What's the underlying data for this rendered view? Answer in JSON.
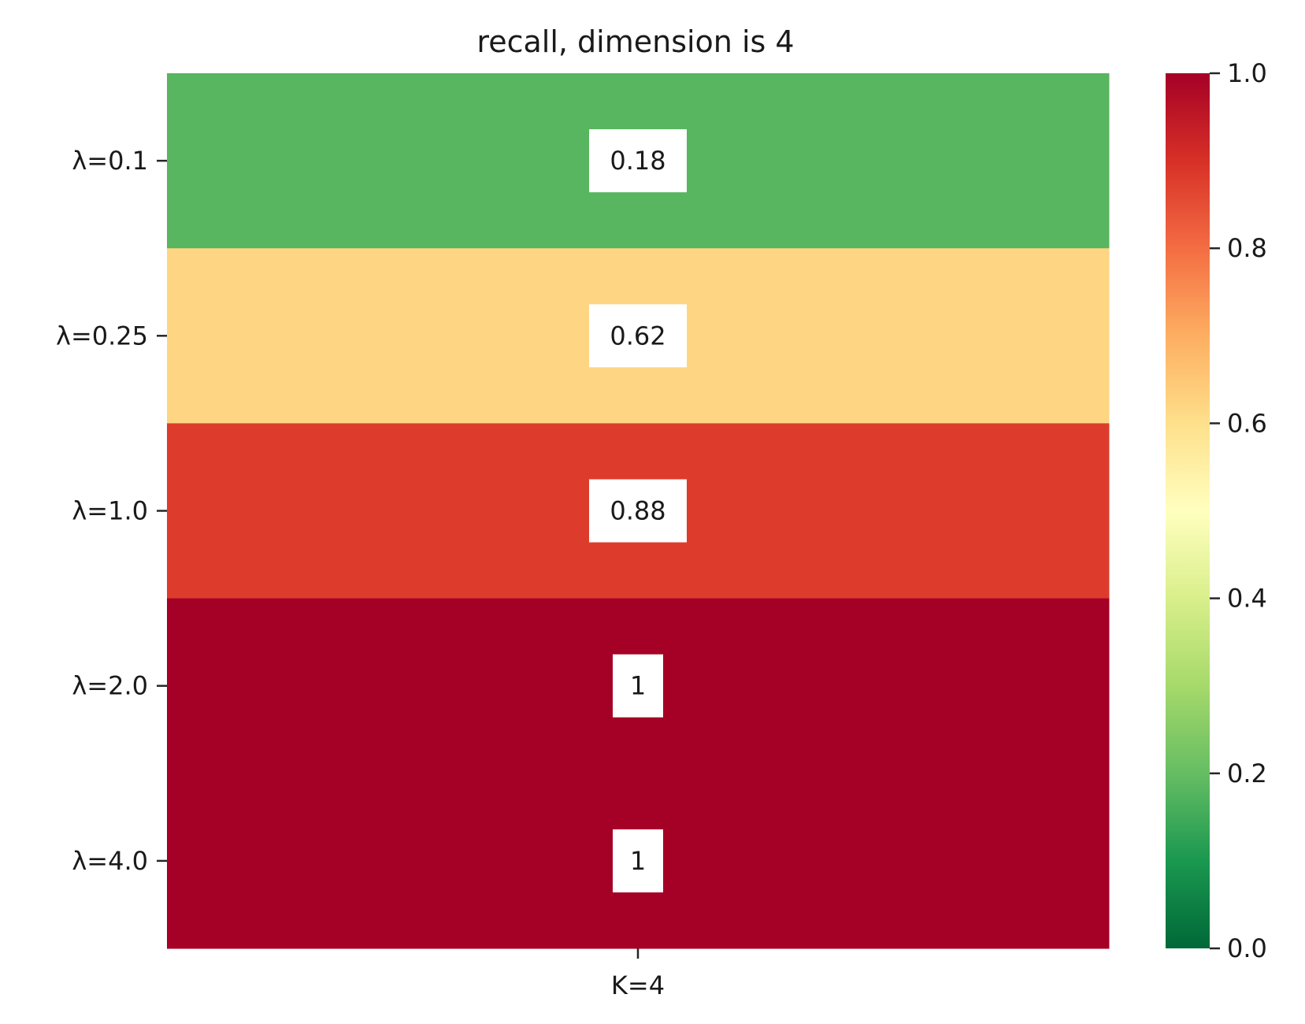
{
  "chart_data": {
    "type": "heatmap",
    "title": "recall, dimension is 4",
    "x_categories": [
      "K=4"
    ],
    "y_categories": [
      "λ=0.1",
      "λ=0.25",
      "λ=1.0",
      "λ=2.0",
      "λ=4.0"
    ],
    "values": [
      [
        0.18
      ],
      [
        0.62
      ],
      [
        0.88
      ],
      [
        1.0
      ],
      [
        1.0
      ]
    ],
    "annotations": [
      [
        "0.18"
      ],
      [
        "0.62"
      ],
      [
        "0.88"
      ],
      [
        "1"
      ],
      [
        "1"
      ]
    ],
    "colormap": "RdYlGn_r",
    "colors": {
      "0.0": "#006837",
      "0.1": "#1a9850",
      "0.2": "#66bd63",
      "0.3": "#a6d96a",
      "0.4": "#d9ef8b",
      "0.5": "#ffffbf",
      "0.6": "#fee08b",
      "0.7": "#fdae61",
      "0.8": "#f46d43",
      "0.9": "#d73027",
      "1.0": "#a50026"
    },
    "colorbar": {
      "range": [
        0.0,
        1.0
      ],
      "ticks": [
        0.0,
        0.2,
        0.4,
        0.6,
        0.8,
        1.0
      ],
      "tick_labels": [
        "0.0",
        "0.2",
        "0.4",
        "0.6",
        "0.8",
        "1.0"
      ]
    },
    "annotation_box_color": "#ffffff"
  }
}
